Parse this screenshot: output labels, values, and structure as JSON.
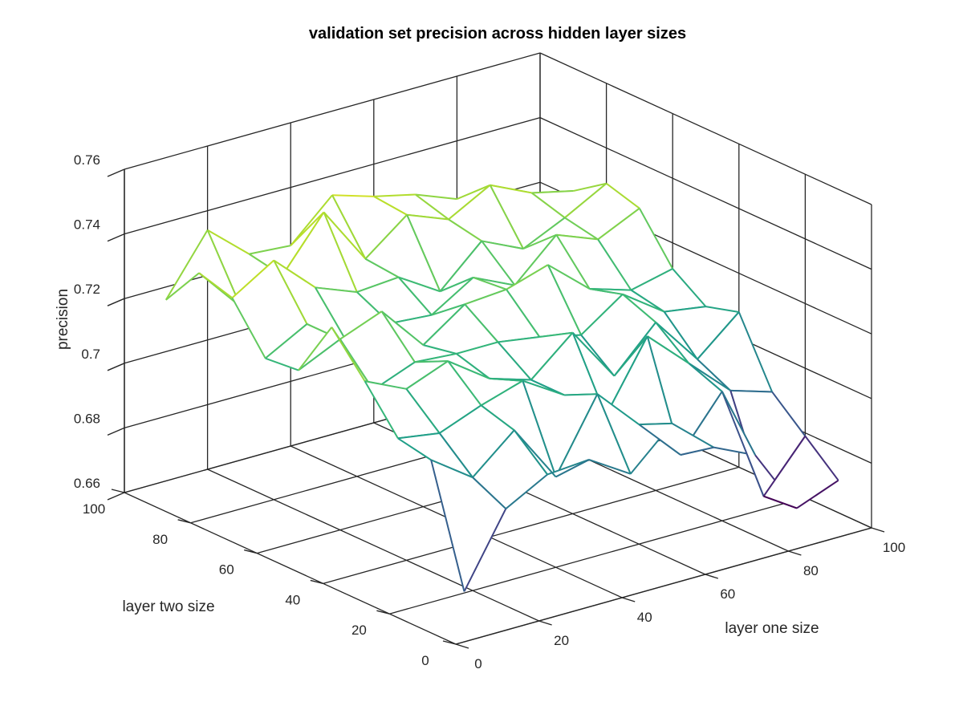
{
  "chart_data": {
    "type": "surface",
    "title": "validation set precision across hidden layer sizes",
    "xlabel": "layer one size",
    "ylabel": "layer two size",
    "zlabel": "precision",
    "x_ticks": [
      "0",
      "20",
      "40",
      "60",
      "80",
      "100"
    ],
    "y_ticks": [
      "0",
      "20",
      "40",
      "60",
      "80",
      "100"
    ],
    "z_ticks": [
      "0.66",
      "0.68",
      "0.7",
      "0.72",
      "0.74",
      "0.76"
    ],
    "xlim": [
      0,
      100
    ],
    "ylim": [
      0,
      100
    ],
    "zlim": [
      0.66,
      0.76
    ],
    "grid": true,
    "colormap": "viridis",
    "x": [
      10,
      20,
      30,
      40,
      50,
      60,
      70,
      80,
      90,
      100
    ],
    "y": [
      10,
      20,
      30,
      40,
      50,
      60,
      70,
      80,
      90,
      100
    ],
    "z": [
      [
        0.668,
        0.69,
        0.697,
        0.698,
        0.69,
        0.702,
        0.691,
        0.685,
        0.665,
        0.67
      ],
      [
        0.704,
        0.695,
        0.706,
        0.688,
        0.71,
        0.697,
        0.684,
        0.7,
        0.664,
        0.679
      ],
      [
        0.706,
        0.704,
        0.709,
        0.713,
        0.705,
        0.695,
        0.716,
        0.704,
        0.692,
        0.688
      ],
      [
        0.719,
        0.713,
        0.718,
        0.709,
        0.705,
        0.716,
        0.699,
        0.712,
        0.697,
        0.708
      ],
      [
        0.731,
        0.708,
        0.713,
        0.712,
        0.712,
        0.71,
        0.707,
        0.716,
        0.707,
        0.705
      ],
      [
        0.713,
        0.719,
        0.724,
        0.71,
        0.719,
        0.72,
        0.724,
        0.713,
        0.709,
        0.712
      ],
      [
        0.712,
        0.719,
        0.709,
        0.712,
        0.711,
        0.719,
        0.713,
        0.725,
        0.72,
        0.726
      ],
      [
        0.726,
        0.734,
        0.722,
        0.717,
        0.718,
        0.71,
        0.722,
        0.716,
        0.722,
        0.729
      ],
      [
        0.729,
        0.715,
        0.721,
        0.737,
        0.719,
        0.729,
        0.724,
        0.731,
        0.725,
        0.722
      ],
      [
        0.716,
        0.734,
        0.723,
        0.722,
        0.734,
        0.73,
        0.727,
        0.722,
        0.72,
        0.716
      ]
    ]
  }
}
